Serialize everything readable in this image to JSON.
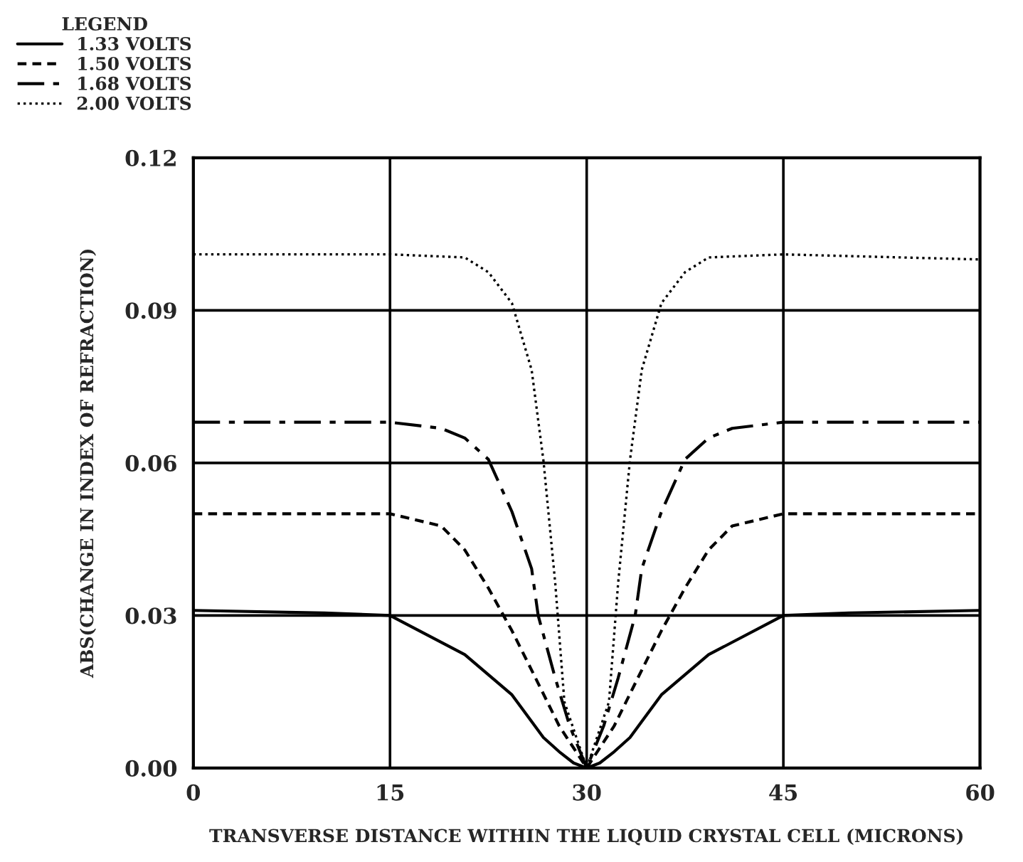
{
  "chart_data": {
    "type": "line",
    "xlabel": "TRANSVERSE DISTANCE WITHIN THE LIQUID CRYSTAL CELL (MICRONS)",
    "ylabel": "ABS(CHANGE IN INDEX OF REFRACTION)",
    "legend_title": "LEGEND",
    "legend": "top left",
    "xlim": [
      0,
      60
    ],
    "xticks": [
      0,
      15,
      30,
      45,
      60
    ],
    "ylim": [
      0,
      0.12
    ],
    "yticks": [
      {
        "value": 0,
        "label": "0.00"
      },
      0.03,
      0.06,
      0.09,
      0.12
    ],
    "grid": true,
    "marker": "none",
    "series": [
      {
        "name": "1.33 VOLTS",
        "color": "#000000",
        "line_style": "solid",
        "x": [
          0,
          10,
          15,
          20.7,
          24.3,
          26.7,
          28,
          29,
          30,
          31,
          32,
          33.3,
          35.7,
          39.3,
          45,
          50,
          60
        ],
        "values": [
          0.031,
          0.0305,
          0.03,
          0.0223,
          0.0144,
          0.006,
          0.003,
          0.001,
          0,
          0.001,
          0.003,
          0.006,
          0.0144,
          0.0223,
          0.03,
          0.0305,
          0.031
        ]
      },
      {
        "name": "1.50 VOLTS",
        "color": "#000000",
        "line_style": "dashed",
        "x": [
          0,
          15,
          18.9,
          20.7,
          22.5,
          24.3,
          26.1,
          27.9,
          30,
          32.1,
          33.9,
          35.7,
          37.5,
          39.3,
          41.1,
          45,
          60
        ],
        "values": [
          0.05,
          0.05,
          0.0476,
          0.0429,
          0.0354,
          0.027,
          0.0177,
          0.0083,
          0,
          0.0083,
          0.0177,
          0.027,
          0.0354,
          0.0429,
          0.0476,
          0.05,
          0.05
        ]
      },
      {
        "name": "1.68 VOLTS",
        "color": "#000000",
        "line_style": "dashdot",
        "x": [
          0,
          15,
          18.9,
          20.7,
          22.5,
          24.3,
          25.8,
          26.3,
          27.6,
          28.7,
          30,
          31.3,
          32.4,
          33.7,
          34.2,
          35.7,
          37.5,
          39.3,
          41.1,
          45,
          60
        ],
        "values": [
          0.068,
          0.068,
          0.0668,
          0.0649,
          0.0607,
          0.0504,
          0.0392,
          0.03,
          0.0177,
          0.0083,
          0,
          0.0083,
          0.0177,
          0.03,
          0.0392,
          0.0504,
          0.0607,
          0.0649,
          0.0668,
          0.068,
          0.068
        ]
      },
      {
        "name": "2.00 VOLTS",
        "color": "#000000",
        "line_style": "dotted",
        "x": [
          0,
          15,
          20.7,
          22.5,
          24.3,
          25.8,
          26.7,
          27.6,
          28.3,
          30,
          31.7,
          32.4,
          33.3,
          34.2,
          35.7,
          37.5,
          39.3,
          45,
          60
        ],
        "values": [
          0.101,
          0.101,
          0.1004,
          0.0975,
          0.0914,
          0.0783,
          0.0605,
          0.0364,
          0.013,
          0,
          0.013,
          0.0364,
          0.0605,
          0.0783,
          0.0914,
          0.0975,
          0.1004,
          0.101,
          0.1
        ]
      }
    ]
  }
}
